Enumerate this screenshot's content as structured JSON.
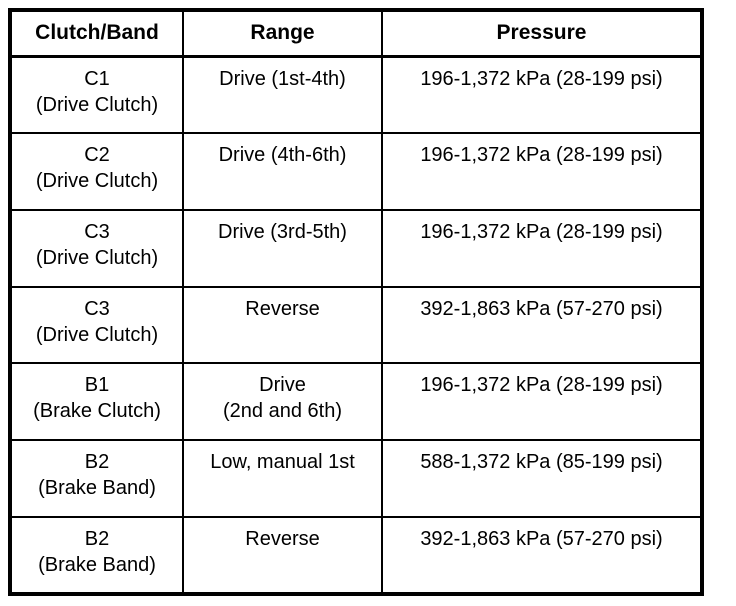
{
  "table": {
    "title_semantic": "clutch-band-pressure-specifications",
    "border_color": "#000000",
    "background_color": "#ffffff",
    "text_color": "#000000",
    "columns": {
      "clutch_band": "Clutch/Band",
      "range": "Range",
      "pressure": "Pressure"
    },
    "rows": [
      {
        "clutch_band": "C1\n(Drive Clutch)",
        "range": "Drive (1st-4th)",
        "pressure": "196-1,372 kPa (28-199 psi)"
      },
      {
        "clutch_band": "C2\n(Drive Clutch)",
        "range": "Drive (4th-6th)",
        "pressure": "196-1,372 kPa (28-199 psi)"
      },
      {
        "clutch_band": "C3\n(Drive Clutch)",
        "range": "Drive (3rd-5th)",
        "pressure": "196-1,372 kPa (28-199 psi)"
      },
      {
        "clutch_band": "C3\n(Drive Clutch)",
        "range": "Reverse",
        "pressure": "392-1,863 kPa (57-270 psi)"
      },
      {
        "clutch_band": "B1\n(Brake Clutch)",
        "range": "Drive\n(2nd and 6th)",
        "pressure": "196-1,372 kPa (28-199 psi)"
      },
      {
        "clutch_band": "B2\n(Brake Band)",
        "range": "Low, manual 1st",
        "pressure": "588-1,372 kPa (85-199 psi)"
      },
      {
        "clutch_band": "B2\n(Brake Band)",
        "range": "Reverse",
        "pressure": "392-1,863 kPa (57-270 psi)"
      }
    ]
  }
}
